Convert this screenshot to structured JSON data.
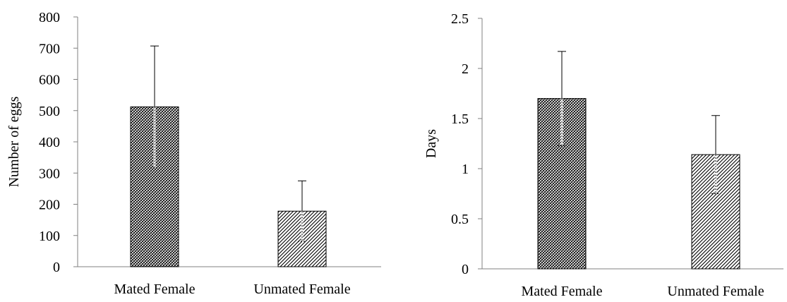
{
  "chart_data": [
    {
      "type": "bar",
      "categories": [
        "Mated Female",
        "Unmated Female"
      ],
      "values": [
        512,
        178
      ],
      "errors": [
        195,
        97
      ],
      "ylabel": "Number of eggs",
      "xlabel": "",
      "ylim": [
        0,
        800
      ],
      "yticks": [
        "0",
        "100",
        "200",
        "300",
        "400",
        "500",
        "600",
        "700",
        "800"
      ],
      "grid": false,
      "legend": "none",
      "patterns": [
        "crosshatch",
        "diagonal"
      ]
    },
    {
      "type": "bar",
      "categories": [
        "Mated Female",
        "Unmated Female"
      ],
      "values": [
        1.7,
        1.14
      ],
      "errors": [
        0.47,
        0.39
      ],
      "ylabel": "Days",
      "xlabel": "",
      "ylim": [
        0,
        2.5
      ],
      "yticks": [
        "0",
        "0.5",
        "1",
        "1.5",
        "2",
        "2.5"
      ],
      "grid": false,
      "legend": "none",
      "patterns": [
        "crosshatch",
        "diagonal"
      ]
    }
  ],
  "colors": {
    "axis": "#808080",
    "bar_edge": "#000000",
    "hatch": "#000000",
    "error_bar": "#000000"
  }
}
